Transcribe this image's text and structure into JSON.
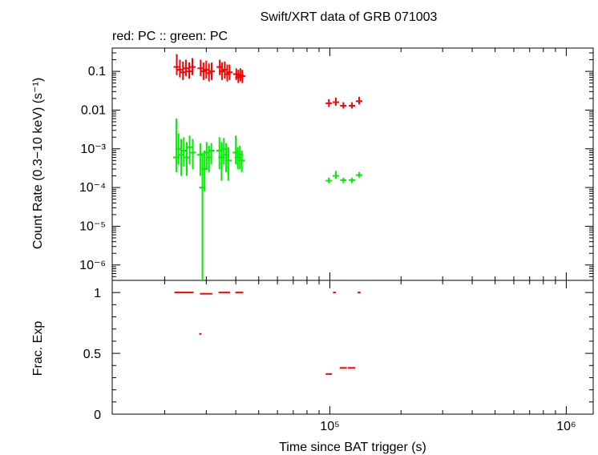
{
  "chart_data": [
    {
      "type": "scatter",
      "title": "Swift/XRT data of GRB 071003",
      "subtitle": "red: PC  :: green: PC",
      "ylabel": "Count Rate (0.3−10 keV) (s⁻¹)",
      "xlabel": "",
      "xscale": "log",
      "yscale": "log",
      "xlim": [
        12000,
        1300000
      ],
      "ylim": [
        4e-07,
        0.4
      ],
      "yticks": [
        {
          "value": 0.1,
          "label": "0.1"
        },
        {
          "value": 0.01,
          "label": "0.01"
        },
        {
          "value": 0.001,
          "label": "10⁻³"
        },
        {
          "value": 0.0001,
          "label": "10⁻⁴"
        },
        {
          "value": 1e-05,
          "label": "10⁻⁵"
        },
        {
          "value": 1e-06,
          "label": "10⁻⁶"
        }
      ],
      "series": [
        {
          "color": "#ff0000",
          "points": [
            {
              "x": 22500,
              "y": 0.13,
              "ylo": 0.08,
              "yhi": 0.28
            },
            {
              "x": 23200,
              "y": 0.11,
              "ylo": 0.07,
              "yhi": 0.2
            },
            {
              "x": 23900,
              "y": 0.095,
              "ylo": 0.06,
              "yhi": 0.18
            },
            {
              "x": 24600,
              "y": 0.12,
              "ylo": 0.075,
              "yhi": 0.2
            },
            {
              "x": 25400,
              "y": 0.1,
              "ylo": 0.065,
              "yhi": 0.17
            },
            {
              "x": 26200,
              "y": 0.13,
              "ylo": 0.08,
              "yhi": 0.22
            },
            {
              "x": 28400,
              "y": 0.12,
              "ylo": 0.075,
              "yhi": 0.2
            },
            {
              "x": 29200,
              "y": 0.1,
              "ylo": 0.06,
              "yhi": 0.17
            },
            {
              "x": 30000,
              "y": 0.11,
              "ylo": 0.065,
              "yhi": 0.19
            },
            {
              "x": 30800,
              "y": 0.09,
              "ylo": 0.055,
              "yhi": 0.16
            },
            {
              "x": 31600,
              "y": 0.1,
              "ylo": 0.06,
              "yhi": 0.17
            },
            {
              "x": 34200,
              "y": 0.13,
              "ylo": 0.08,
              "yhi": 0.2
            },
            {
              "x": 35000,
              "y": 0.1,
              "ylo": 0.06,
              "yhi": 0.17
            },
            {
              "x": 35900,
              "y": 0.11,
              "ylo": 0.065,
              "yhi": 0.18
            },
            {
              "x": 36800,
              "y": 0.085,
              "ylo": 0.055,
              "yhi": 0.15
            },
            {
              "x": 37600,
              "y": 0.095,
              "ylo": 0.06,
              "yhi": 0.15
            },
            {
              "x": 40200,
              "y": 0.085,
              "ylo": 0.06,
              "yhi": 0.12
            },
            {
              "x": 41000,
              "y": 0.07,
              "ylo": 0.05,
              "yhi": 0.11
            },
            {
              "x": 41800,
              "y": 0.08,
              "ylo": 0.055,
              "yhi": 0.12
            },
            {
              "x": 42600,
              "y": 0.075,
              "ylo": 0.05,
              "yhi": 0.11
            },
            {
              "x": 99000,
              "y": 0.015,
              "ylo": 0.012,
              "yhi": 0.019
            },
            {
              "x": 106000,
              "y": 0.016,
              "ylo": 0.013,
              "yhi": 0.021
            },
            {
              "x": 114000,
              "y": 0.013,
              "ylo": 0.011,
              "yhi": 0.016
            },
            {
              "x": 124000,
              "y": 0.013,
              "ylo": 0.011,
              "yhi": 0.016
            },
            {
              "x": 133000,
              "y": 0.017,
              "ylo": 0.014,
              "yhi": 0.022
            }
          ]
        },
        {
          "color": "#00ee00",
          "points": [
            {
              "x": 22400,
              "y": 0.0006,
              "ylo": 0.00025,
              "yhi": 0.006
            },
            {
              "x": 22900,
              "y": 0.001,
              "ylo": 0.0004,
              "yhi": 0.0025
            },
            {
              "x": 23500,
              "y": 0.0007,
              "ylo": 0.0002,
              "yhi": 0.0018
            },
            {
              "x": 24100,
              "y": 0.0009,
              "ylo": 0.00035,
              "yhi": 0.002
            },
            {
              "x": 24800,
              "y": 0.0006,
              "ylo": 0.0002,
              "yhi": 0.0015
            },
            {
              "x": 25500,
              "y": 0.0011,
              "ylo": 0.0004,
              "yhi": 0.0022
            },
            {
              "x": 26300,
              "y": 0.0008,
              "ylo": 0.0003,
              "yhi": 0.0018
            },
            {
              "x": 28300,
              "y": 0.0007,
              "ylo": 0.0002,
              "yhi": 0.0014
            },
            {
              "x": 28900,
              "y": 0.0001,
              "ylo": 4e-07,
              "yhi": 0.0008
            },
            {
              "x": 29500,
              "y": 0.0003,
              "ylo": 8e-05,
              "yhi": 0.0009
            },
            {
              "x": 30100,
              "y": 0.0008,
              "ylo": 0.0003,
              "yhi": 0.0015
            },
            {
              "x": 30800,
              "y": 0.0006,
              "ylo": 0.00025,
              "yhi": 0.0012
            },
            {
              "x": 31500,
              "y": 0.0009,
              "ylo": 0.0004,
              "yhi": 0.0014
            },
            {
              "x": 34100,
              "y": 0.0009,
              "ylo": 0.0003,
              "yhi": 0.002
            },
            {
              "x": 34800,
              "y": 0.0006,
              "ylo": 0.00015,
              "yhi": 0.0015
            },
            {
              "x": 35600,
              "y": 0.001,
              "ylo": 0.0004,
              "yhi": 0.0019
            },
            {
              "x": 36400,
              "y": 0.0007,
              "ylo": 0.00025,
              "yhi": 0.0014
            },
            {
              "x": 37200,
              "y": 0.0005,
              "ylo": 0.00015,
              "yhi": 0.0011
            },
            {
              "x": 40000,
              "y": 0.0008,
              "ylo": 0.0004,
              "yhi": 0.0022
            },
            {
              "x": 40800,
              "y": 0.0006,
              "ylo": 0.0003,
              "yhi": 0.0011
            },
            {
              "x": 41600,
              "y": 0.0007,
              "ylo": 0.0003,
              "yhi": 0.0012
            },
            {
              "x": 42400,
              "y": 0.0005,
              "ylo": 0.00025,
              "yhi": 0.0009
            },
            {
              "x": 99000,
              "y": 0.00015,
              "ylo": 0.00013,
              "yhi": 0.00018
            },
            {
              "x": 106000,
              "y": 0.0002,
              "ylo": 0.00017,
              "yhi": 0.00027
            },
            {
              "x": 114000,
              "y": 0.000155,
              "ylo": 0.00013,
              "yhi": 0.00018
            },
            {
              "x": 124000,
              "y": 0.000155,
              "ylo": 0.00013,
              "yhi": 0.00018
            },
            {
              "x": 133000,
              "y": 0.00021,
              "ylo": 0.00018,
              "yhi": 0.00025
            }
          ]
        }
      ]
    },
    {
      "type": "scatter",
      "title": "",
      "ylabel": "Frac. Exp",
      "xlabel": "Time since BAT trigger (s)",
      "xscale": "log",
      "yscale": "linear",
      "xlim": [
        12000,
        1300000
      ],
      "ylim": [
        0,
        1.1
      ],
      "yticks": [
        {
          "value": 0,
          "label": "0"
        },
        {
          "value": 0.5,
          "label": "0.5"
        },
        {
          "value": 1,
          "label": "1"
        }
      ],
      "xticks": [
        {
          "value": 100000,
          "label": "10⁵"
        },
        {
          "value": 1000000,
          "label": "10⁶"
        }
      ],
      "series": [
        {
          "color": "#ff0000",
          "segments": [
            {
              "x0": 22000,
              "x1": 26500,
              "y": 1.0
            },
            {
              "x0": 28200,
              "x1": 31800,
              "y": 0.99
            },
            {
              "x0": 33800,
              "x1": 37800,
              "y": 1.0
            },
            {
              "x0": 39800,
              "x1": 43000,
              "y": 1.0
            },
            {
              "x0": 28000,
              "x1": 28600,
              "y": 0.66
            },
            {
              "x0": 96000,
              "x1": 102000,
              "y": 0.33
            },
            {
              "x0": 103000,
              "x1": 106000,
              "y": 1.0
            },
            {
              "x0": 110000,
              "x1": 118000,
              "y": 0.38
            },
            {
              "x0": 119000,
              "x1": 128000,
              "y": 0.38
            },
            {
              "x0": 131000,
              "x1": 135000,
              "y": 1.0
            }
          ]
        }
      ]
    }
  ]
}
